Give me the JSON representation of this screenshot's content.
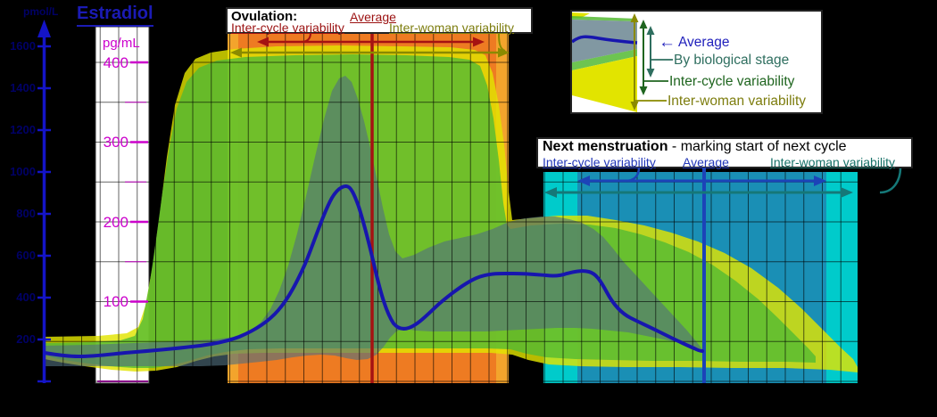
{
  "title": {
    "text": "Estradiol"
  },
  "axis_left": {
    "unit": "pmol/L",
    "ticks": [
      {
        "label": "1600"
      },
      {
        "label": "1400"
      },
      {
        "label": "1200"
      },
      {
        "label": "1000"
      },
      {
        "label": "800"
      },
      {
        "label": "600"
      },
      {
        "label": "400"
      },
      {
        "label": "200"
      }
    ]
  },
  "axis_right": {
    "unit": "pg/mL",
    "ticks": [
      {
        "label": "400"
      },
      {
        "label": "300"
      },
      {
        "label": "200"
      },
      {
        "label": "100"
      }
    ]
  },
  "ovulation_box": {
    "heading": "Ovulation:",
    "average": "Average",
    "inter_cycle": "Inter-cycle variability",
    "inter_woman": "Inter-woman variability"
  },
  "next_box": {
    "heading": "Next menstruation",
    "subheading": " - marking start of next cycle",
    "inter_cycle": "Inter-cycle variability",
    "average": "Average",
    "inter_woman": "Inter-woman variability"
  },
  "legend": {
    "arrow": "←",
    "average": "Average",
    "stage": "By biological stage",
    "inter_cycle": "Inter-cycle variability",
    "inter_woman": "Inter-woman variability"
  },
  "colors": {
    "curve_blue": "#1716AE",
    "orange_outer": "#F3A42C",
    "orange_inner": "#EE7B22",
    "cyan_outer": "#00CBCB",
    "cyan_inner": "#1A8FB5",
    "band_yellow": "#E2E400",
    "band_green": "#53BA33",
    "band_gray": "#50707E",
    "magenta": "#CC00CC",
    "axis_blue": "#1414C8",
    "dark_red": "#A51212",
    "olive": "#8A8A00",
    "teal": "#157878",
    "dark_blue": "#1C43B8"
  },
  "chart_data": {
    "type": "area",
    "title": "Estradiol",
    "y_units": [
      "pmol/L",
      "pg/mL"
    ],
    "y_axis_pmol_ticks": [
      1600,
      1400,
      1200,
      1000,
      800,
      600,
      400,
      200
    ],
    "y_axis_pg_ticks": [
      400,
      300,
      200,
      100
    ],
    "grid": true,
    "series": [
      {
        "name": "Average estradiol",
        "unit": "pg/mL",
        "points_day_pg": [
          [
            0,
            36
          ],
          [
            2,
            32
          ],
          [
            4,
            33
          ],
          [
            6,
            36
          ],
          [
            8,
            41
          ],
          [
            9.5,
            50
          ],
          [
            11,
            62
          ],
          [
            12.5,
            85
          ],
          [
            13.5,
            110
          ],
          [
            14.5,
            150
          ],
          [
            15.5,
            205
          ],
          [
            16.2,
            245
          ],
          [
            17,
            225
          ],
          [
            17.7,
            170
          ],
          [
            18.4,
            110
          ],
          [
            19.1,
            67
          ],
          [
            20,
            67
          ],
          [
            21,
            85
          ],
          [
            22,
            105
          ],
          [
            23,
            122
          ],
          [
            24,
            131
          ],
          [
            25.5,
            135
          ],
          [
            27,
            134
          ],
          [
            28.5,
            136
          ],
          [
            29.5,
            139
          ],
          [
            30.5,
            130
          ],
          [
            31.5,
            115
          ],
          [
            32.5,
            95
          ],
          [
            33.5,
            78
          ],
          [
            34.5,
            57
          ],
          [
            35.5,
            38
          ]
        ]
      }
    ],
    "bands": [
      {
        "name": "By biological stage",
        "color": "#50707E",
        "peak_pg_range": [
          0,
          400
        ]
      },
      {
        "name": "Inter-cycle variability",
        "color": "#53BA33",
        "peak_pg_range": [
          0,
          410
        ]
      },
      {
        "name": "Inter-woman variability",
        "color": "#E2E400",
        "peak_pg_range": [
          0,
          420
        ]
      }
    ],
    "events": [
      {
        "name": "Ovulation",
        "average_day": 17.7,
        "inter_cycle_days": [
          10.5,
          24.4
        ],
        "inter_woman_days": [
          9.9,
          25.1
        ],
        "color": "#EE7B22"
      },
      {
        "name": "Next menstruation",
        "average_day": 35.6,
        "inter_cycle_days": [
          28.8,
          42.2
        ],
        "inter_woman_days": [
          26.9,
          43.9
        ],
        "color": "#1A8FB5"
      }
    ]
  }
}
